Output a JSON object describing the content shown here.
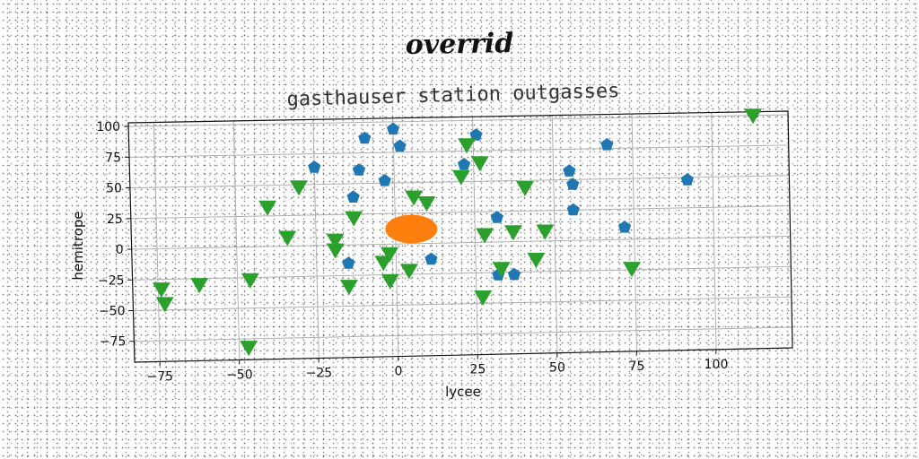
{
  "suptitle": "overrid",
  "chart_data": {
    "type": "scatter",
    "title": "gasthauser station outgasses",
    "xlabel": "lycee",
    "ylabel": "hemitrope",
    "xlim": [
      -83,
      124
    ],
    "ylim": [
      -92,
      103
    ],
    "x_ticks": [
      -75,
      -50,
      -25,
      0,
      25,
      50,
      75,
      100
    ],
    "y_ticks": [
      100,
      75,
      50,
      25,
      0,
      -25,
      -50,
      -75
    ],
    "x_tick_labels": [
      "−75",
      "−50",
      "−25",
      "0",
      "25",
      "50",
      "75",
      "100"
    ],
    "y_tick_labels": [
      "100",
      "75",
      "50",
      "25",
      "0",
      "−25",
      "−50",
      "−75"
    ],
    "grid": true,
    "colors": {
      "blue": "#1f77b4",
      "orange": "#ff7f0e",
      "green": "#2ca02c"
    },
    "series": [
      {
        "marker": "pentagon",
        "color": "#1f77b4",
        "points": [
          [
            -9,
            87
          ],
          [
            0,
            94
          ],
          [
            2,
            80
          ],
          [
            -25,
            64
          ],
          [
            -11,
            61
          ],
          [
            -3,
            52
          ],
          [
            -13,
            39
          ],
          [
            26,
            88
          ],
          [
            22,
            64
          ],
          [
            55,
            57
          ],
          [
            56,
            46
          ],
          [
            67,
            78
          ],
          [
            92,
            48
          ],
          [
            56,
            25
          ],
          [
            32,
            20
          ],
          [
            72,
            10
          ],
          [
            11,
            -13
          ],
          [
            -15,
            -15
          ],
          [
            32,
            -27
          ],
          [
            37,
            -27
          ]
        ]
      },
      {
        "marker": "blob",
        "color": "#ff7f0e",
        "points": [
          [
            5,
            12
          ]
        ]
      },
      {
        "marker": "triangle_down",
        "color": "#2ca02c",
        "points": [
          [
            113,
            100
          ],
          [
            23,
            80
          ],
          [
            27,
            65
          ],
          [
            21,
            54
          ],
          [
            41,
            44
          ],
          [
            -30,
            48
          ],
          [
            -40,
            32
          ],
          [
            6,
            38
          ],
          [
            10,
            33
          ],
          [
            -13,
            22
          ],
          [
            -34,
            7
          ],
          [
            -19,
            4
          ],
          [
            -19,
            -4
          ],
          [
            28,
            6
          ],
          [
            37,
            8
          ],
          [
            47,
            8
          ],
          [
            44,
            -15
          ],
          [
            33,
            -22
          ],
          [
            -4,
            -15
          ],
          [
            -2,
            -8
          ],
          [
            4,
            -22
          ],
          [
            -2,
            -30
          ],
          [
            -15,
            -34
          ],
          [
            74,
            -24
          ],
          [
            -46,
            -27
          ],
          [
            -62,
            -30
          ],
          [
            -74,
            -33
          ],
          [
            -73,
            -45
          ],
          [
            27,
            -45
          ],
          [
            -47,
            -82
          ]
        ]
      }
    ]
  }
}
